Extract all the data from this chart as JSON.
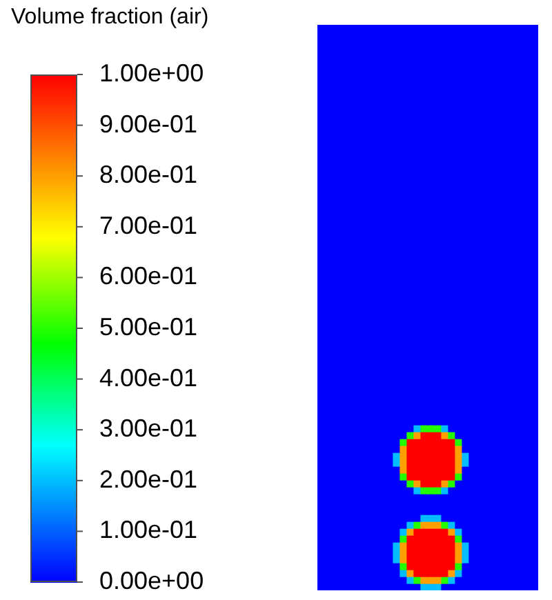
{
  "chart_data": {
    "type": "heatmap",
    "clabel": "Volume fraction (air)",
    "categories": [
      null,
      null,
      null,
      null,
      null,
      null,
      null,
      null,
      null,
      null,
      null,
      null,
      null,
      null,
      null,
      null,
      null,
      null,
      null,
      null,
      null,
      null,
      null,
      null,
      null,
      null,
      null,
      null,
      null,
      null,
      null,
      null
    ],
    "y_categories": [
      null,
      null,
      null,
      null,
      null,
      null,
      null,
      null,
      null,
      null,
      null,
      null,
      null,
      null,
      null,
      null,
      null,
      null,
      null,
      null,
      null,
      null,
      null,
      null,
      null,
      null,
      null,
      null,
      null,
      null,
      null,
      null,
      null,
      null,
      null,
      null,
      null,
      null,
      null,
      null,
      null,
      null,
      null,
      null,
      null,
      null,
      null,
      null,
      null,
      null,
      null,
      null,
      null,
      null,
      null,
      null,
      null,
      null,
      null,
      null,
      null,
      null,
      null,
      null,
      null,
      null,
      null,
      null,
      null,
      null,
      null,
      null,
      null,
      null,
      null,
      null,
      null,
      null,
      null,
      null,
      null,
      null
    ],
    "cells": [
      [
        0,
        0,
        0,
        0,
        0,
        0,
        0,
        0,
        0,
        0,
        0,
        0,
        0,
        0,
        0,
        0,
        0,
        0,
        0,
        0,
        0,
        0,
        0,
        0,
        0,
        0,
        0,
        0,
        0,
        0,
        0,
        0
      ],
      [
        0,
        0,
        0,
        0,
        0,
        0,
        0,
        0,
        0,
        0,
        0,
        0,
        0,
        0,
        0,
        0,
        0,
        0,
        0,
        0,
        0,
        0,
        0,
        0,
        0,
        0,
        0,
        0,
        0,
        0,
        0,
        0
      ],
      [
        0,
        0,
        0,
        0,
        0,
        0,
        0,
        0,
        0,
        0,
        0,
        0,
        0,
        0,
        0,
        0,
        0,
        0,
        0,
        0,
        0,
        0,
        0,
        0,
        0,
        0,
        0,
        0,
        0,
        0,
        0,
        0
      ],
      [
        0,
        0,
        0,
        0,
        0,
        0,
        0,
        0,
        0,
        0,
        0,
        0,
        0,
        0,
        0,
        0,
        0,
        0,
        0,
        0,
        0,
        0,
        0,
        0,
        0,
        0,
        0,
        0,
        0,
        0,
        0,
        0
      ],
      [
        0,
        0,
        0,
        0,
        0,
        0,
        0,
        0,
        0,
        0,
        0,
        0,
        0,
        0,
        0,
        0,
        0,
        0,
        0,
        0,
        0,
        0,
        0,
        0,
        0,
        0,
        0,
        0,
        0,
        0,
        0,
        0
      ],
      [
        0,
        0,
        0,
        0,
        0,
        0,
        0,
        0,
        0,
        0,
        0,
        0,
        0,
        0,
        0,
        0,
        0,
        0,
        0,
        0,
        0,
        0,
        0,
        0,
        0,
        0,
        0,
        0,
        0,
        0,
        0,
        0
      ],
      [
        0,
        0,
        0,
        0,
        0,
        0,
        0,
        0,
        0,
        0,
        0,
        0,
        0,
        0,
        0,
        0,
        0,
        0,
        0,
        0,
        0,
        0,
        0,
        0,
        0,
        0,
        0,
        0,
        0,
        0,
        0,
        0
      ],
      [
        0,
        0,
        0,
        0,
        0,
        0,
        0,
        0,
        0,
        0,
        0,
        0,
        0,
        0,
        0,
        0,
        0,
        0,
        0,
        0,
        0,
        0,
        0,
        0,
        0,
        0,
        0,
        0,
        0,
        0,
        0,
        0
      ],
      [
        0,
        0,
        0,
        0,
        0,
        0,
        0,
        0,
        0,
        0,
        0,
        0,
        0,
        0,
        0,
        0,
        0,
        0,
        0,
        0,
        0,
        0,
        0,
        0,
        0,
        0,
        0,
        0,
        0,
        0,
        0,
        0
      ],
      [
        0,
        0,
        0,
        0,
        0,
        0,
        0,
        0,
        0,
        0,
        0,
        0,
        0,
        0,
        0,
        0,
        0,
        0,
        0,
        0,
        0,
        0,
        0,
        0,
        0,
        0,
        0,
        0,
        0,
        0,
        0,
        0
      ],
      [
        0,
        0,
        0,
        0,
        0,
        0,
        0,
        0,
        0,
        0,
        0,
        0,
        0,
        0,
        0,
        0,
        0,
        0,
        0,
        0,
        0,
        0,
        0,
        0,
        0,
        0,
        0,
        0,
        0,
        0,
        0,
        0
      ],
      [
        0,
        0,
        0,
        0,
        0,
        0,
        0,
        0,
        0,
        0,
        0,
        0,
        0,
        0,
        0,
        0,
        0,
        0,
        0,
        0,
        0,
        0,
        0,
        0,
        0,
        0,
        0,
        0,
        0,
        0,
        0,
        0
      ],
      [
        0,
        0,
        0,
        0,
        0,
        0,
        0,
        0,
        0,
        0,
        0,
        0,
        0,
        0,
        0,
        0,
        0,
        0,
        0,
        0,
        0,
        0,
        0,
        0,
        0,
        0,
        0,
        0,
        0,
        0,
        0,
        0
      ],
      [
        0,
        0,
        0,
        0,
        0,
        0,
        0,
        0,
        0,
        0,
        0,
        0,
        0,
        0,
        0,
        0,
        0,
        0,
        0,
        0,
        0,
        0,
        0,
        0,
        0,
        0,
        0,
        0,
        0,
        0,
        0,
        0
      ],
      [
        0,
        0,
        0,
        0,
        0,
        0,
        0,
        0,
        0,
        0,
        0,
        0,
        0,
        0,
        0,
        0,
        0,
        0,
        0,
        0,
        0,
        0,
        0,
        0,
        0,
        0,
        0,
        0,
        0,
        0,
        0,
        0
      ],
      [
        0,
        0,
        0,
        0,
        0,
        0,
        0,
        0,
        0,
        0,
        0,
        0,
        0,
        0,
        0,
        0,
        0,
        0,
        0,
        0,
        0,
        0,
        0,
        0,
        0,
        0,
        0,
        0,
        0,
        0,
        0,
        0
      ],
      [
        0,
        0,
        0,
        0,
        0,
        0,
        0,
        0,
        0,
        0,
        0,
        0,
        0,
        0,
        0,
        0,
        0,
        0,
        0,
        0,
        0,
        0,
        0,
        0,
        0,
        0,
        0,
        0,
        0,
        0,
        0,
        0
      ],
      [
        0,
        0,
        0,
        0,
        0,
        0,
        0,
        0,
        0,
        0,
        0,
        0,
        0,
        0,
        0,
        0,
        0,
        0,
        0,
        0,
        0,
        0,
        0,
        0,
        0,
        0,
        0,
        0,
        0,
        0,
        0,
        0
      ],
      [
        0,
        0,
        0,
        0,
        0,
        0,
        0,
        0,
        0,
        0,
        0,
        0,
        0,
        0,
        0,
        0,
        0,
        0,
        0,
        0,
        0,
        0,
        0,
        0,
        0,
        0,
        0,
        0,
        0,
        0,
        0,
        0
      ],
      [
        0,
        0,
        0,
        0,
        0,
        0,
        0,
        0,
        0,
        0,
        0,
        0,
        0,
        0,
        0,
        0,
        0,
        0,
        0,
        0,
        0,
        0,
        0,
        0,
        0,
        0,
        0,
        0,
        0,
        0,
        0,
        0
      ],
      [
        0,
        0,
        0,
        0,
        0,
        0,
        0,
        0,
        0,
        0,
        0,
        0,
        0,
        0,
        0,
        0,
        0,
        0,
        0,
        0,
        0,
        0,
        0,
        0,
        0,
        0,
        0,
        0,
        0,
        0,
        0,
        0
      ],
      [
        0,
        0,
        0,
        0,
        0,
        0,
        0,
        0,
        0,
        0,
        0,
        0,
        0,
        0,
        0,
        0,
        0,
        0,
        0,
        0,
        0,
        0,
        0,
        0,
        0,
        0,
        0,
        0,
        0,
        0,
        0,
        0
      ],
      [
        0,
        0,
        0,
        0,
        0,
        0,
        0,
        0,
        0,
        0,
        0,
        0,
        0,
        0,
        0,
        0,
        0,
        0,
        0,
        0,
        0,
        0,
        0,
        0,
        0,
        0,
        0,
        0,
        0,
        0,
        0,
        0
      ],
      [
        0,
        0,
        0,
        0,
        0,
        0,
        0,
        0,
        0,
        0,
        0,
        0,
        0,
        0,
        0,
        0,
        0,
        0,
        0,
        0,
        0,
        0,
        0,
        0,
        0,
        0,
        0,
        0,
        0,
        0,
        0,
        0
      ],
      [
        0,
        0,
        0,
        0,
        0,
        0,
        0,
        0,
        0,
        0,
        0,
        0,
        0,
        0,
        0,
        0,
        0,
        0,
        0,
        0,
        0,
        0,
        0,
        0,
        0,
        0,
        0,
        0,
        0,
        0,
        0,
        0
      ],
      [
        0,
        0,
        0,
        0,
        0,
        0,
        0,
        0,
        0,
        0,
        0,
        0,
        0,
        0,
        0,
        0,
        0,
        0,
        0,
        0,
        0,
        0,
        0,
        0,
        0,
        0,
        0,
        0,
        0,
        0,
        0,
        0
      ],
      [
        0,
        0,
        0,
        0,
        0,
        0,
        0,
        0,
        0,
        0,
        0,
        0,
        0,
        0,
        0,
        0,
        0,
        0,
        0,
        0,
        0,
        0,
        0,
        0,
        0,
        0,
        0,
        0,
        0,
        0,
        0,
        0
      ],
      [
        0,
        0,
        0,
        0,
        0,
        0,
        0,
        0,
        0,
        0,
        0,
        0,
        0,
        0,
        0,
        0,
        0,
        0,
        0,
        0,
        0,
        0,
        0,
        0,
        0,
        0,
        0,
        0,
        0,
        0,
        0,
        0
      ],
      [
        0,
        0,
        0,
        0,
        0,
        0,
        0,
        0,
        0,
        0,
        0,
        0,
        0,
        0,
        0,
        0,
        0,
        0,
        0,
        0,
        0,
        0,
        0,
        0,
        0,
        0,
        0,
        0,
        0,
        0,
        0,
        0
      ],
      [
        0,
        0,
        0,
        0,
        0,
        0,
        0,
        0,
        0,
        0,
        0,
        0,
        0,
        0,
        0,
        0,
        0,
        0,
        0,
        0,
        0,
        0,
        0,
        0,
        0,
        0,
        0,
        0,
        0,
        0,
        0,
        0
      ],
      [
        0,
        0,
        0,
        0,
        0,
        0,
        0,
        0,
        0,
        0,
        0,
        0,
        0,
        0,
        0,
        0,
        0,
        0,
        0,
        0,
        0,
        0,
        0,
        0,
        0,
        0,
        0,
        0,
        0,
        0,
        0,
        0
      ],
      [
        0,
        0,
        0,
        0,
        0,
        0,
        0,
        0,
        0,
        0,
        0,
        0,
        0,
        0,
        0,
        0,
        0,
        0,
        0,
        0,
        0,
        0,
        0,
        0,
        0,
        0,
        0,
        0,
        0,
        0,
        0,
        0
      ],
      [
        0,
        0,
        0,
        0,
        0,
        0,
        0,
        0,
        0,
        0,
        0,
        0,
        0,
        0,
        0,
        0,
        0,
        0,
        0,
        0,
        0,
        0,
        0,
        0,
        0,
        0,
        0,
        0,
        0,
        0,
        0,
        0
      ],
      [
        0,
        0,
        0,
        0,
        0,
        0,
        0,
        0,
        0,
        0,
        0,
        0,
        0,
        0,
        0,
        0,
        0,
        0,
        0,
        0,
        0,
        0,
        0,
        0,
        0,
        0,
        0,
        0,
        0,
        0,
        0,
        0
      ],
      [
        0,
        0,
        0,
        0,
        0,
        0,
        0,
        0,
        0,
        0,
        0,
        0,
        0,
        0,
        0,
        0,
        0,
        0,
        0,
        0,
        0,
        0,
        0,
        0,
        0,
        0,
        0,
        0,
        0,
        0,
        0,
        0
      ],
      [
        0,
        0,
        0,
        0,
        0,
        0,
        0,
        0,
        0,
        0,
        0,
        0,
        0,
        0,
        0,
        0,
        0,
        0,
        0,
        0,
        0,
        0,
        0,
        0,
        0,
        0,
        0,
        0,
        0,
        0,
        0,
        0
      ],
      [
        0,
        0,
        0,
        0,
        0,
        0,
        0,
        0,
        0,
        0,
        0,
        0,
        0,
        0,
        0,
        0,
        0,
        0,
        0,
        0,
        0,
        0,
        0,
        0,
        0,
        0,
        0,
        0,
        0,
        0,
        0,
        0
      ],
      [
        0,
        0,
        0,
        0,
        0,
        0,
        0,
        0,
        0,
        0,
        0,
        0,
        0,
        0,
        0,
        0,
        0,
        0,
        0,
        0,
        0,
        0,
        0,
        0,
        0,
        0,
        0,
        0,
        0,
        0,
        0,
        0
      ],
      [
        0,
        0,
        0,
        0,
        0,
        0,
        0,
        0,
        0,
        0,
        0,
        0,
        0,
        0,
        0,
        0,
        0,
        0,
        0,
        0,
        0,
        0,
        0,
        0,
        0,
        0,
        0,
        0,
        0,
        0,
        0,
        0
      ],
      [
        0,
        0,
        0,
        0,
        0,
        0,
        0,
        0,
        0,
        0,
        0,
        0,
        0,
        0,
        0,
        0,
        0,
        0,
        0,
        0,
        0,
        0,
        0,
        0,
        0,
        0,
        0,
        0,
        0,
        0,
        0,
        0
      ],
      [
        0,
        0,
        0,
        0,
        0,
        0,
        0,
        0,
        0,
        0,
        0,
        0,
        0,
        0,
        0,
        0,
        0,
        0,
        0,
        0,
        0,
        0,
        0,
        0,
        0,
        0,
        0,
        0,
        0,
        0,
        0,
        0
      ],
      [
        0,
        0,
        0,
        0,
        0,
        0,
        0,
        0,
        0,
        0,
        0,
        0,
        0,
        0,
        0,
        0,
        0,
        0,
        0,
        0,
        0,
        0,
        0,
        0,
        0,
        0,
        0,
        0,
        0,
        0,
        0,
        0
      ],
      [
        0,
        0,
        0,
        0,
        0,
        0,
        0,
        0,
        0,
        0,
        0,
        0,
        0,
        0,
        0,
        0,
        0,
        0,
        0,
        0,
        0,
        0,
        0,
        0,
        0,
        0,
        0,
        0,
        0,
        0,
        0,
        0
      ],
      [
        0,
        0,
        0,
        0,
        0,
        0,
        0,
        0,
        0,
        0,
        0,
        0,
        0,
        0,
        0,
        0,
        0,
        0,
        0,
        0,
        0,
        0,
        0,
        0,
        0,
        0,
        0,
        0,
        0,
        0,
        0,
        0
      ],
      [
        0,
        0,
        0,
        0,
        0,
        0,
        0,
        0,
        0,
        0,
        0,
        0,
        0,
        0,
        0,
        0,
        0,
        0,
        0,
        0,
        0,
        0,
        0,
        0,
        0,
        0,
        0,
        0,
        0,
        0,
        0,
        0
      ],
      [
        0,
        0,
        0,
        0,
        0,
        0,
        0,
        0,
        0,
        0,
        0,
        0,
        0,
        0,
        0,
        0,
        0,
        0,
        0,
        0,
        0,
        0,
        0,
        0,
        0,
        0,
        0,
        0,
        0,
        0,
        0,
        0
      ],
      [
        0,
        0,
        0,
        0,
        0,
        0,
        0,
        0,
        0,
        0,
        0,
        0,
        0,
        0,
        0,
        0,
        0,
        0,
        0,
        0,
        0,
        0,
        0,
        0,
        0,
        0,
        0,
        0,
        0,
        0,
        0,
        0
      ],
      [
        0,
        0,
        0,
        0,
        0,
        0,
        0,
        0,
        0,
        0,
        0,
        0,
        0,
        0,
        0,
        0,
        0,
        0,
        0,
        0,
        0,
        0,
        0,
        0,
        0,
        0,
        0,
        0,
        0,
        0,
        0,
        0
      ],
      [
        0,
        0,
        0,
        0,
        0,
        0,
        0,
        0,
        0,
        0,
        0,
        0,
        0,
        0,
        0,
        0,
        0,
        0,
        0,
        0,
        0,
        0,
        0,
        0,
        0,
        0,
        0,
        0,
        0,
        0,
        0,
        0
      ],
      [
        0,
        0,
        0,
        0,
        0,
        0,
        0,
        0,
        0,
        0,
        0,
        0,
        0,
        0,
        0,
        0,
        0,
        0,
        0,
        0,
        0,
        0,
        0,
        0,
        0,
        0,
        0,
        0,
        0,
        0,
        0,
        0
      ],
      [
        0,
        0,
        0,
        0,
        0,
        0,
        0,
        0,
        0,
        0,
        0,
        0,
        0,
        0,
        0,
        0,
        0,
        0,
        0,
        0,
        0,
        0,
        0,
        0,
        0,
        0,
        0,
        0,
        0,
        0,
        0,
        0
      ],
      [
        0,
        0,
        0,
        0,
        0,
        0,
        0,
        0,
        0,
        0,
        0,
        0,
        0,
        0,
        0,
        0,
        0,
        0,
        0,
        0,
        0,
        0,
        0,
        0,
        0,
        0,
        0,
        0,
        0,
        0,
        0,
        0
      ],
      [
        0,
        0,
        0,
        0,
        0,
        0,
        0,
        0,
        0,
        0,
        0,
        0,
        0,
        0,
        0,
        0,
        0,
        0,
        0,
        0,
        0,
        0,
        0,
        0,
        0,
        0,
        0,
        0,
        0,
        0,
        0,
        0
      ],
      [
        0,
        0,
        0,
        0,
        0,
        0,
        0,
        0,
        0,
        0,
        0,
        0,
        0,
        0,
        0,
        0,
        0,
        0,
        0,
        0,
        0,
        0,
        0,
        0,
        0,
        0,
        0,
        0,
        0,
        0,
        0,
        0
      ],
      [
        0,
        0,
        0,
        0,
        0,
        0,
        0,
        0,
        0,
        0,
        0,
        0,
        0,
        0,
        0,
        0,
        0,
        0,
        0,
        0,
        0,
        0,
        0,
        0,
        0,
        0,
        0,
        0,
        0,
        0,
        0,
        0
      ],
      [
        0,
        0,
        0,
        0,
        0,
        0,
        0,
        0,
        0,
        0,
        0,
        0,
        0,
        0,
        0,
        0,
        0,
        0,
        0,
        0,
        0,
        0,
        0,
        0,
        0,
        0,
        0,
        0,
        0,
        0,
        0,
        0
      ],
      [
        0,
        0,
        0,
        0,
        0,
        0,
        0,
        0,
        0,
        0,
        0,
        0,
        0,
        0,
        0,
        0,
        0,
        0,
        0,
        0,
        0,
        0,
        0,
        0,
        0,
        0,
        0,
        0,
        0,
        0,
        0,
        0
      ],
      [
        0,
        0,
        0,
        0,
        0,
        0,
        0,
        0,
        0,
        0,
        0,
        0,
        0,
        0,
        0,
        0,
        0,
        0,
        0,
        0,
        0,
        0,
        0,
        0,
        0,
        0,
        0,
        0,
        0,
        0,
        0,
        0
      ],
      [
        0,
        0,
        0,
        0,
        0,
        0,
        0,
        0,
        0,
        0,
        0,
        0,
        0,
        0,
        0.2,
        0.5,
        0.5,
        0.5,
        0.2,
        0,
        0,
        0,
        0,
        0,
        0,
        0,
        0,
        0,
        0,
        0,
        0,
        0
      ],
      [
        0,
        0,
        0,
        0,
        0,
        0,
        0,
        0,
        0,
        0,
        0,
        0,
        0,
        0.5,
        0.8,
        1,
        1,
        1,
        0.8,
        0.5,
        0,
        0,
        0,
        0,
        0,
        0,
        0,
        0,
        0,
        0,
        0,
        0
      ],
      [
        0,
        0,
        0,
        0,
        0,
        0,
        0,
        0,
        0,
        0,
        0,
        0,
        0.5,
        1,
        1,
        1,
        1,
        1,
        1,
        1,
        0.5,
        0,
        0,
        0,
        0,
        0,
        0,
        0,
        0,
        0,
        0,
        0
      ],
      [
        0,
        0,
        0,
        0,
        0,
        0,
        0,
        0,
        0,
        0,
        0,
        0,
        0.8,
        1,
        1,
        1,
        1,
        1,
        1,
        1,
        0.8,
        0,
        0,
        0,
        0,
        0,
        0,
        0,
        0,
        0,
        0,
        0
      ],
      [
        0,
        0,
        0,
        0,
        0,
        0,
        0,
        0,
        0,
        0,
        0,
        0.2,
        0.8,
        1,
        1,
        1,
        1,
        1,
        1,
        1,
        0.8,
        0.2,
        0,
        0,
        0,
        0,
        0,
        0,
        0,
        0,
        0,
        0
      ],
      [
        0,
        0,
        0,
        0,
        0,
        0,
        0,
        0,
        0,
        0,
        0,
        0.2,
        0.8,
        1,
        1,
        1,
        1,
        1,
        1,
        1,
        0.8,
        0.2,
        0,
        0,
        0,
        0,
        0,
        0,
        0,
        0,
        0,
        0
      ],
      [
        0,
        0,
        0,
        0,
        0,
        0,
        0,
        0,
        0,
        0,
        0,
        0,
        0.8,
        1,
        1,
        1,
        1,
        1,
        1,
        1,
        0.8,
        0,
        0,
        0,
        0,
        0,
        0,
        0,
        0,
        0,
        0,
        0
      ],
      [
        0,
        0,
        0,
        0,
        0,
        0,
        0,
        0,
        0,
        0,
        0,
        0,
        0.5,
        1,
        1,
        1,
        1,
        1,
        1,
        1,
        0.5,
        0,
        0,
        0,
        0,
        0,
        0,
        0,
        0,
        0,
        0,
        0
      ],
      [
        0,
        0,
        0,
        0,
        0,
        0,
        0,
        0,
        0,
        0,
        0,
        0,
        0,
        0.5,
        0.8,
        1,
        1,
        1,
        0.8,
        0.5,
        0,
        0,
        0,
        0,
        0,
        0,
        0,
        0,
        0,
        0,
        0,
        0
      ],
      [
        0,
        0,
        0,
        0,
        0,
        0,
        0,
        0,
        0,
        0,
        0,
        0,
        0,
        0,
        0.2,
        0.5,
        0.5,
        0.5,
        0.2,
        0,
        0,
        0,
        0,
        0,
        0,
        0,
        0,
        0,
        0,
        0,
        0,
        0
      ],
      [
        0,
        0,
        0,
        0,
        0,
        0,
        0,
        0,
        0,
        0,
        0,
        0,
        0,
        0,
        0,
        0,
        0,
        0,
        0,
        0,
        0,
        0,
        0,
        0,
        0,
        0,
        0,
        0,
        0,
        0,
        0,
        0
      ],
      [
        0,
        0,
        0,
        0,
        0,
        0,
        0,
        0,
        0,
        0,
        0,
        0,
        0,
        0,
        0,
        0,
        0,
        0,
        0,
        0,
        0,
        0,
        0,
        0,
        0,
        0,
        0,
        0,
        0,
        0,
        0,
        0
      ],
      [
        0,
        0,
        0,
        0,
        0,
        0,
        0,
        0,
        0,
        0,
        0,
        0,
        0,
        0,
        0,
        0,
        0,
        0,
        0,
        0,
        0,
        0,
        0,
        0,
        0,
        0,
        0,
        0,
        0,
        0,
        0,
        0
      ],
      [
        0,
        0,
        0,
        0,
        0,
        0,
        0,
        0,
        0,
        0,
        0,
        0,
        0,
        0,
        0,
        0.2,
        0.2,
        0.2,
        0,
        0,
        0,
        0,
        0,
        0,
        0,
        0,
        0,
        0,
        0,
        0,
        0,
        0
      ],
      [
        0,
        0,
        0,
        0,
        0,
        0,
        0,
        0,
        0,
        0,
        0,
        0,
        0,
        0.2,
        0.5,
        0.8,
        0.8,
        0.8,
        0.5,
        0.2,
        0,
        0,
        0,
        0,
        0,
        0,
        0,
        0,
        0,
        0,
        0,
        0
      ],
      [
        0,
        0,
        0,
        0,
        0,
        0,
        0,
        0,
        0,
        0,
        0,
        0,
        0.2,
        0.8,
        1,
        1,
        1,
        1,
        1,
        0.8,
        0.2,
        0,
        0,
        0,
        0,
        0,
        0,
        0,
        0,
        0,
        0,
        0
      ],
      [
        0,
        0,
        0,
        0,
        0,
        0,
        0,
        0,
        0,
        0,
        0,
        0,
        0.5,
        1,
        1,
        1,
        1,
        1,
        1,
        1,
        0.5,
        0,
        0,
        0,
        0,
        0,
        0,
        0,
        0,
        0,
        0,
        0
      ],
      [
        0,
        0,
        0,
        0,
        0,
        0,
        0,
        0,
        0,
        0,
        0,
        0.2,
        0.8,
        1,
        1,
        1,
        1,
        1,
        1,
        1,
        0.8,
        0.2,
        0,
        0,
        0,
        0,
        0,
        0,
        0,
        0,
        0,
        0
      ],
      [
        0,
        0,
        0,
        0,
        0,
        0,
        0,
        0,
        0,
        0,
        0,
        0.2,
        0.8,
        1,
        1,
        1,
        1,
        1,
        1,
        1,
        0.8,
        0.2,
        0,
        0,
        0,
        0,
        0,
        0,
        0,
        0,
        0,
        0
      ],
      [
        0,
        0,
        0,
        0,
        0,
        0,
        0,
        0,
        0,
        0,
        0,
        0.2,
        0.8,
        1,
        1,
        1,
        1,
        1,
        1,
        1,
        0.8,
        0.2,
        0,
        0,
        0,
        0,
        0,
        0,
        0,
        0,
        0,
        0
      ],
      [
        0,
        0,
        0,
        0,
        0,
        0,
        0,
        0,
        0,
        0,
        0,
        0,
        0.5,
        1,
        1,
        1,
        1,
        1,
        1,
        1,
        0.5,
        0,
        0,
        0,
        0,
        0,
        0,
        0,
        0,
        0,
        0,
        0
      ],
      [
        0,
        0,
        0,
        0,
        0,
        0,
        0,
        0,
        0,
        0,
        0,
        0,
        0.2,
        0.8,
        1,
        1,
        1,
        1,
        1,
        0.8,
        0.2,
        0,
        0,
        0,
        0,
        0,
        0,
        0,
        0,
        0,
        0,
        0
      ],
      [
        0,
        0,
        0,
        0,
        0,
        0,
        0,
        0,
        0,
        0,
        0,
        0,
        0,
        0.2,
        0.5,
        0.8,
        0.8,
        0.8,
        0.5,
        0.2,
        0,
        0,
        0,
        0,
        0,
        0,
        0,
        0,
        0,
        0,
        0,
        0
      ],
      [
        0,
        0,
        0,
        0,
        0,
        0,
        0,
        0,
        0,
        0,
        0,
        0,
        0,
        0,
        0,
        0.2,
        0.2,
        0.2,
        0,
        0,
        0,
        0,
        0,
        0,
        0,
        0,
        0,
        0,
        0,
        0,
        0,
        0
      ]
    ],
    "clim": [
      0,
      1
    ],
    "cticks": [
      {
        "value": 1,
        "label": "1.00e+00"
      },
      {
        "value": 0.9,
        "label": "9.00e-01"
      },
      {
        "value": 0.8,
        "label": "8.00e-01"
      },
      {
        "value": 0.7,
        "label": "7.00e-01"
      },
      {
        "value": 0.6,
        "label": "6.00e-01"
      },
      {
        "value": 0.5,
        "label": "5.00e-01"
      },
      {
        "value": 0.4,
        "label": "4.00e-01"
      },
      {
        "value": 0.3,
        "label": "3.00e-01"
      },
      {
        "value": 0.2,
        "label": "2.00e-01"
      },
      {
        "value": 0.1,
        "label": "1.00e-01"
      },
      {
        "value": 0,
        "label": "0.00e+00"
      }
    ],
    "tick_labels": false
  }
}
